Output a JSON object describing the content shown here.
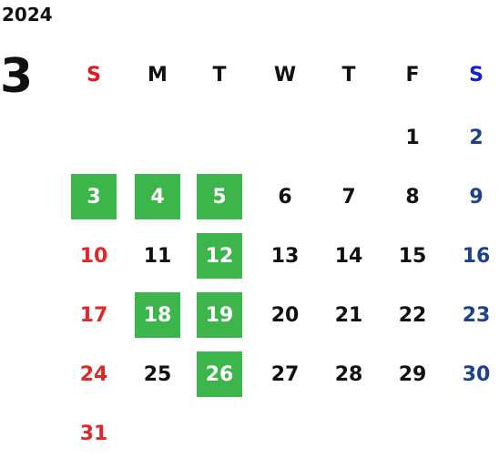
{
  "year": "2024",
  "month": "3",
  "weekdays": [
    "S",
    "M",
    "T",
    "W",
    "T",
    "F",
    "S"
  ],
  "weeks": [
    [
      null,
      null,
      null,
      null,
      null,
      {
        "day": 1
      },
      {
        "day": 2
      }
    ],
    [
      {
        "day": 3,
        "highlight": true
      },
      {
        "day": 4,
        "highlight": true
      },
      {
        "day": 5,
        "highlight": true
      },
      {
        "day": 6
      },
      {
        "day": 7
      },
      {
        "day": 8
      },
      {
        "day": 9
      }
    ],
    [
      {
        "day": 10
      },
      {
        "day": 11
      },
      {
        "day": 12,
        "highlight": true
      },
      {
        "day": 13
      },
      {
        "day": 14
      },
      {
        "day": 15
      },
      {
        "day": 16
      }
    ],
    [
      {
        "day": 17
      },
      {
        "day": 18,
        "highlight": true
      },
      {
        "day": 19,
        "highlight": true
      },
      {
        "day": 20
      },
      {
        "day": 21
      },
      {
        "day": 22
      },
      {
        "day": 23
      }
    ],
    [
      {
        "day": 24
      },
      {
        "day": 25
      },
      {
        "day": 26,
        "highlight": true
      },
      {
        "day": 27
      },
      {
        "day": 28
      },
      {
        "day": 29
      },
      {
        "day": 30
      }
    ],
    [
      {
        "day": 31
      },
      null,
      null,
      null,
      null,
      null,
      null
    ]
  ]
}
